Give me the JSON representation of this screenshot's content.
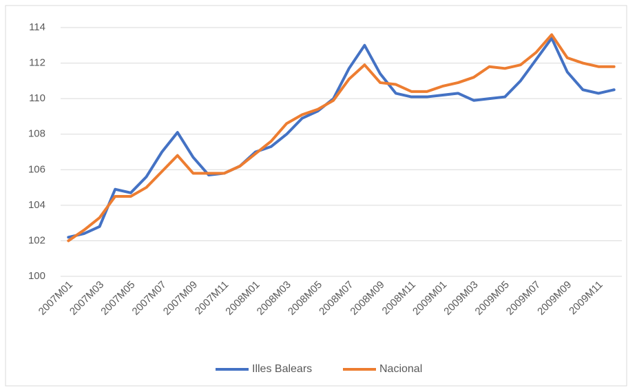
{
  "chart_data": {
    "type": "line",
    "categories": [
      "2007M01",
      null,
      "2007M03",
      null,
      "2007M05",
      null,
      "2007M07",
      null,
      "2007M09",
      null,
      "2007M11",
      null,
      "2008M01",
      null,
      "2008M03",
      null,
      "2008M05",
      null,
      "2008M07",
      null,
      "2008M09",
      null,
      "2008M11",
      null,
      "2009M01",
      null,
      "2009M03",
      null,
      "2009M05",
      null,
      "2009M07",
      null,
      "2009M09",
      null,
      "2009M11",
      null
    ],
    "series": [
      {
        "name": "Illes Balears",
        "color": "#4472c4",
        "values": [
          102.2,
          102.4,
          102.8,
          104.9,
          104.7,
          105.6,
          107.0,
          108.1,
          106.7,
          105.7,
          105.8,
          106.2,
          107.0,
          107.3,
          108.0,
          108.9,
          109.3,
          110.0,
          111.7,
          113.0,
          111.4,
          110.3,
          110.1,
          110.1,
          110.2,
          110.3,
          109.9,
          110.0,
          110.1,
          111.0,
          112.2,
          113.4,
          111.5,
          110.5,
          110.3,
          110.5
        ]
      },
      {
        "name": "Nacional",
        "color": "#ed7d31",
        "values": [
          102.0,
          102.6,
          103.3,
          104.5,
          104.5,
          105.0,
          105.9,
          106.8,
          105.8,
          105.8,
          105.8,
          106.2,
          106.9,
          107.6,
          108.6,
          109.1,
          109.4,
          109.9,
          111.1,
          111.9,
          110.9,
          110.8,
          110.4,
          110.4,
          110.7,
          110.9,
          111.2,
          111.8,
          111.7,
          111.9,
          112.6,
          113.6,
          112.3,
          112.0,
          111.8,
          111.8
        ]
      }
    ],
    "ylim": [
      100,
      114
    ],
    "yticks": [
      100,
      102,
      104,
      106,
      108,
      110,
      112,
      114
    ],
    "grid": true,
    "legend": "bottom"
  }
}
